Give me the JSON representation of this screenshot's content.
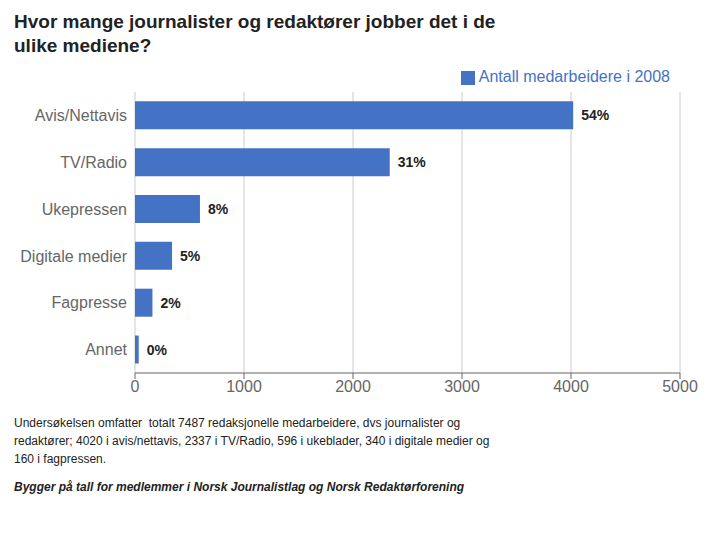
{
  "chart_data": {
    "type": "bar",
    "orientation": "horizontal",
    "title": "Hvor mange journalister og redaktører jobber det i de\nulike mediene?",
    "categories": [
      "Avis/Nettavis",
      "TV/Radio",
      "Ukepressen",
      "Digitale medier",
      "Fagpresse",
      "Annet"
    ],
    "series": [
      {
        "name": "Antall medarbeidere i 2008",
        "color": "#4472C4",
        "values": [
          4020,
          2337,
          596,
          340,
          160,
          34
        ]
      }
    ],
    "xlim": [
      0,
      5000
    ],
    "xticks": [
      0,
      1000,
      2000,
      3000,
      4000,
      5000
    ],
    "grid": true,
    "legend": "top right",
    "annotations": [
      {
        "category": "Avis/Nettavis",
        "text": "54%"
      },
      {
        "category": "TV/Radio",
        "text": "31%"
      },
      {
        "category": "Ukepressen",
        "text": "8%"
      },
      {
        "category": "Digitale medier",
        "text": "5%"
      },
      {
        "category": "Fagpresse",
        "text": "2%"
      },
      {
        "category": "Annet",
        "text": "0%"
      },
      {
        "text": "Undersøkelsen omfatter  totalt 7487 redaksjonelle medarbeidere, dvs journalister og"
      },
      {
        "text": "redaktører; 4020 i avis/nettavis, 2337 i TV/Radio, 596 i ukeblader, 340 i digitale medier og"
      },
      {
        "text": "160 i fagpressen."
      },
      {
        "text": "Bygger på tall for medlemmer i Norsk Journalistlag og Norsk Redaktørforening"
      }
    ]
  }
}
